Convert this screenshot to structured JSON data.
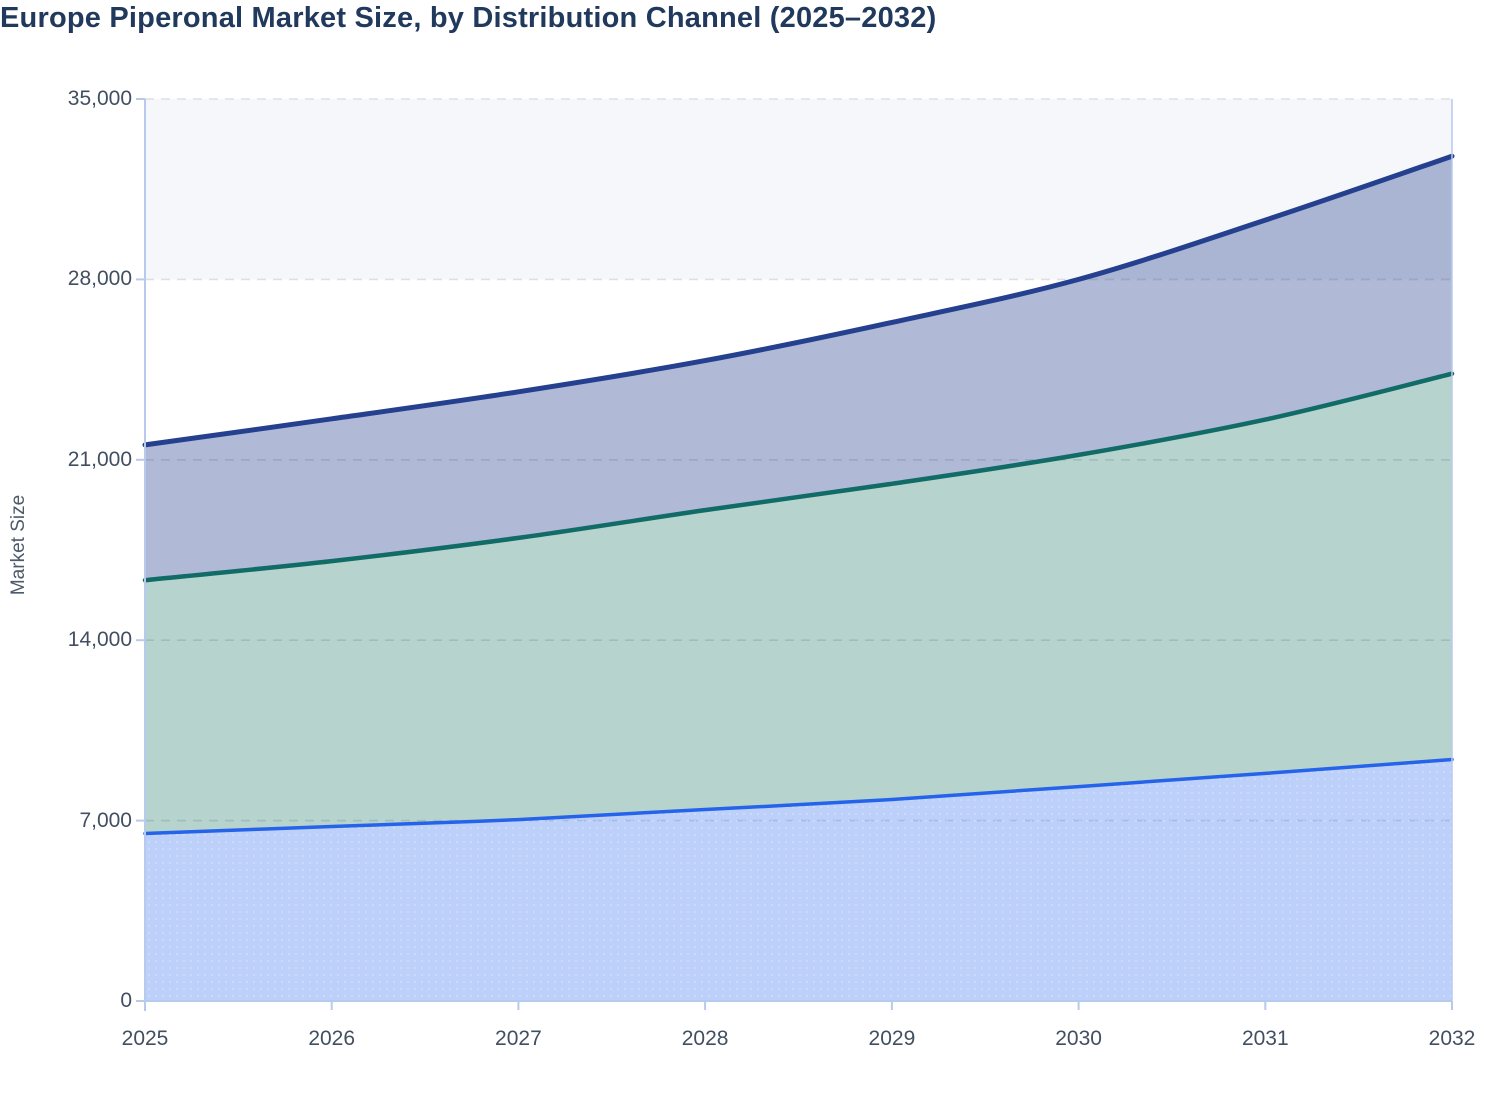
{
  "title": "Europe Piperonal Market Size, by Distribution Channel (2025–2032)",
  "y_axis": {
    "label": "Market Size",
    "tick_labels": [
      "35,000",
      "28,000",
      "21,000",
      "14,000",
      "7,000",
      "0"
    ],
    "tick_values": [
      35000,
      28000,
      21000,
      14000,
      7000,
      0
    ]
  },
  "x_axis": {
    "tick_labels": [
      "2025",
      "2026",
      "2027",
      "2028",
      "2029",
      "2030",
      "2031",
      "2032"
    ]
  },
  "chart_data": {
    "type": "area",
    "stacked": true,
    "title": "Europe Piperonal Market Size, by Distribution Channel (2025–2032)",
    "xlabel": "",
    "ylabel": "Market Size",
    "x": [
      2025,
      2026,
      2027,
      2028,
      2029,
      2030,
      2031,
      2032
    ],
    "ylim": [
      0,
      35000
    ],
    "yticks": [
      0,
      7000,
      14000,
      21000,
      28000,
      35000
    ],
    "grid": "dashed-horizontal",
    "legend": "none",
    "series": [
      {
        "name": "bottom-series-blue",
        "line_color": "#2563eb",
        "fill_color": "rgba(37,99,235,0.30)",
        "line_width": 3.5,
        "values": [
          6500,
          6770,
          7040,
          7430,
          7820,
          8320,
          8830,
          9370
        ]
      },
      {
        "name": "middle-series-teal",
        "line_color": "#116b66",
        "fill_color": "rgba(15,108,94,0.30)",
        "line_width": 4.5,
        "values": [
          9830,
          10300,
          10930,
          11620,
          12250,
          12870,
          13730,
          14970
        ]
      },
      {
        "name": "top-series-navy",
        "line_color": "#24408e",
        "fill_color": "rgba(30,58,138,0.35)",
        "line_width": 5,
        "values": [
          5250,
          5520,
          5670,
          5800,
          6260,
          6810,
          7740,
          8440
        ]
      }
    ],
    "cumulative_totals": [
      21580,
      22590,
      23640,
      24850,
      26330,
      28000,
      30300,
      32780
    ],
    "band": {
      "from": 28000,
      "to": 35000,
      "color": "#f5f7fa"
    }
  },
  "colors": {
    "grid": "#dce0e6",
    "axis": "#b8c9ee",
    "title_text": "#20395c",
    "tick_text": "#424f61"
  }
}
